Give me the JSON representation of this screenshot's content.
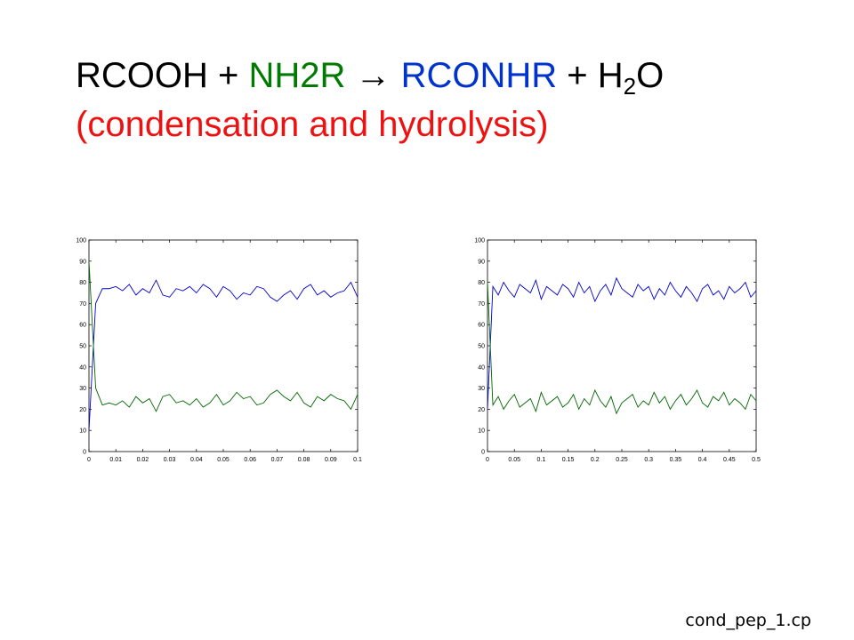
{
  "title": {
    "parts": [
      {
        "text": "RCOOH + ",
        "color": "#000000"
      },
      {
        "text": "NH2R",
        "color": "#007a00"
      },
      {
        "text": " → ",
        "color": "#000000"
      },
      {
        "text": "RCONHR",
        "color": "#0033cc"
      },
      {
        "text": " + H",
        "color": "#000000"
      },
      {
        "text": "2",
        "color": "#000000",
        "subscript": true
      },
      {
        "text": "O",
        "color": "#000000"
      }
    ],
    "subtitle": {
      "text": "(condensation and hydrolysis)",
      "color": "#ee1111"
    }
  },
  "chart_data": [
    {
      "type": "line",
      "x": [
        0,
        0.0025,
        0.005,
        0.0075,
        0.01,
        0.0125,
        0.015,
        0.0175,
        0.02,
        0.0225,
        0.025,
        0.0275,
        0.03,
        0.0325,
        0.035,
        0.0375,
        0.04,
        0.0425,
        0.045,
        0.0475,
        0.05,
        0.0525,
        0.055,
        0.0575,
        0.06,
        0.0625,
        0.065,
        0.0675,
        0.07,
        0.0725,
        0.075,
        0.0775,
        0.08,
        0.0825,
        0.085,
        0.0875,
        0.09,
        0.0925,
        0.095,
        0.0975,
        0.1
      ],
      "series": [
        {
          "color": "#0000cc",
          "values": [
            10,
            70,
            77,
            77,
            78,
            76,
            79,
            74,
            77,
            75,
            81,
            74,
            73,
            77,
            76,
            78,
            75,
            79,
            77,
            73,
            78,
            76,
            72,
            75,
            74,
            78,
            77,
            73,
            71,
            74,
            76,
            72,
            77,
            79,
            74,
            76,
            73,
            75,
            76,
            80,
            73
          ]
        },
        {
          "color": "#006600",
          "values": [
            90,
            30,
            22,
            23,
            22,
            24,
            21,
            26,
            23,
            25,
            19,
            26,
            27,
            23,
            24,
            22,
            25,
            21,
            23,
            27,
            22,
            24,
            28,
            25,
            26,
            22,
            23,
            27,
            29,
            26,
            24,
            28,
            23,
            21,
            26,
            24,
            27,
            25,
            24,
            20,
            27
          ]
        }
      ],
      "xlim": [
        0,
        0.1
      ],
      "xticks": [
        0,
        0.01,
        0.02,
        0.03,
        0.04,
        0.05,
        0.06,
        0.07,
        0.08,
        0.09,
        0.1
      ],
      "ylim": [
        0,
        100
      ],
      "yticks": [
        0,
        10,
        20,
        30,
        40,
        50,
        60,
        70,
        80,
        90,
        100
      ]
    },
    {
      "type": "line",
      "x": [
        0,
        0.01,
        0.02,
        0.03,
        0.04,
        0.05,
        0.06,
        0.07,
        0.08,
        0.09,
        0.1,
        0.11,
        0.12,
        0.13,
        0.14,
        0.15,
        0.16,
        0.17,
        0.18,
        0.19,
        0.2,
        0.21,
        0.22,
        0.23,
        0.24,
        0.25,
        0.26,
        0.27,
        0.28,
        0.29,
        0.3,
        0.31,
        0.32,
        0.33,
        0.34,
        0.35,
        0.36,
        0.37,
        0.38,
        0.39,
        0.4,
        0.41,
        0.42,
        0.43,
        0.44,
        0.45,
        0.46,
        0.47,
        0.48,
        0.49,
        0.5
      ],
      "series": [
        {
          "color": "#0000cc",
          "values": [
            20,
            78,
            74,
            80,
            76,
            73,
            79,
            77,
            75,
            81,
            72,
            78,
            76,
            74,
            79,
            77,
            73,
            80,
            75,
            78,
            71,
            76,
            79,
            74,
            82,
            77,
            75,
            73,
            79,
            76,
            78,
            72,
            77,
            74,
            80,
            76,
            73,
            78,
            75,
            71,
            77,
            79,
            74,
            76,
            72,
            78,
            75,
            77,
            80,
            73,
            76
          ]
        },
        {
          "color": "#006600",
          "values": [
            80,
            22,
            26,
            20,
            24,
            27,
            21,
            23,
            25,
            19,
            28,
            22,
            24,
            26,
            21,
            23,
            27,
            20,
            25,
            22,
            29,
            24,
            21,
            26,
            18,
            23,
            25,
            27,
            21,
            24,
            22,
            28,
            23,
            26,
            20,
            24,
            27,
            22,
            25,
            29,
            23,
            21,
            26,
            24,
            28,
            22,
            25,
            23,
            20,
            27,
            24
          ]
        }
      ],
      "xlim": [
        0,
        0.5
      ],
      "xticks": [
        0,
        0.05,
        0.1,
        0.15,
        0.2,
        0.25,
        0.3,
        0.35,
        0.4,
        0.45,
        0.5
      ],
      "ylim": [
        0,
        100
      ],
      "yticks": [
        0,
        10,
        20,
        30,
        40,
        50,
        60,
        70,
        80,
        90,
        100
      ]
    }
  ],
  "footer": "cond_pep_1.cp"
}
